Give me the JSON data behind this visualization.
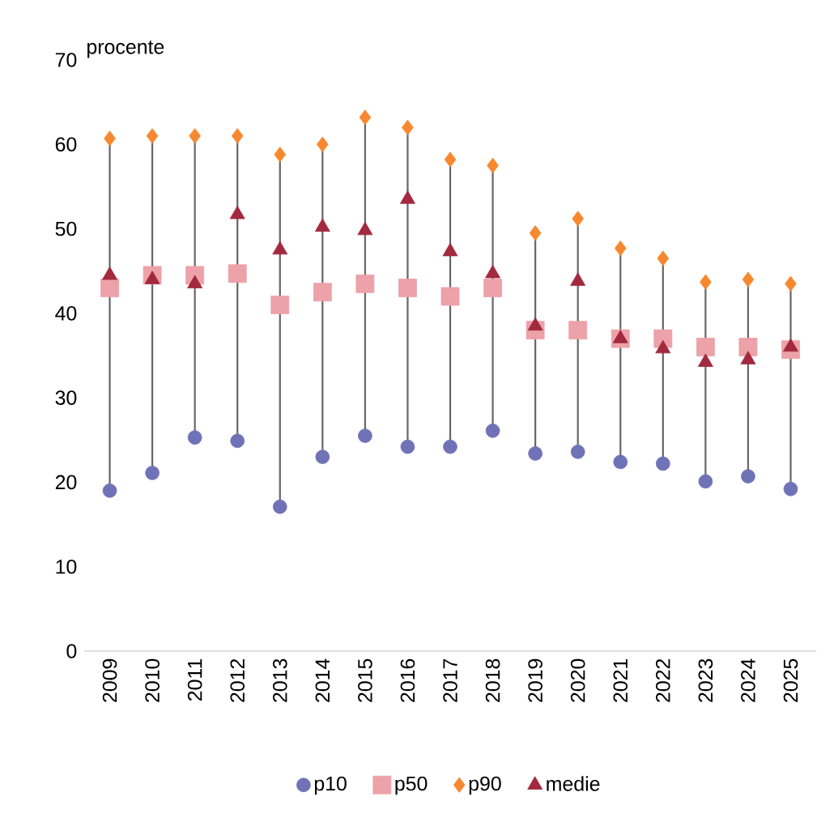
{
  "chart_data": {
    "type": "scatter",
    "ylabel": "procente",
    "categories": [
      "2009",
      "2010",
      "2011",
      "2012",
      "2013",
      "2014",
      "2015",
      "2016",
      "2017",
      "2018",
      "2019",
      "2020",
      "2021",
      "2022",
      "2023",
      "2024",
      "2025"
    ],
    "series": [
      {
        "name": "p10",
        "color": "#6f72b6",
        "marker": "circle",
        "values": [
          19.0,
          21.1,
          25.3,
          24.9,
          17.1,
          23.0,
          25.5,
          24.2,
          24.2,
          26.1,
          23.4,
          23.6,
          22.4,
          22.2,
          20.1,
          20.7,
          19.2
        ]
      },
      {
        "name": "p50",
        "color": "#eca2a8",
        "marker": "square",
        "values": [
          43.0,
          44.5,
          44.5,
          44.7,
          41.0,
          42.5,
          43.5,
          43.0,
          42.0,
          43.0,
          38.0,
          38.0,
          37.0,
          37.0,
          36.0,
          36.0,
          35.7
        ]
      },
      {
        "name": "p90",
        "color": "#f7882f",
        "marker": "diamond",
        "values": [
          60.7,
          61.0,
          61.0,
          61.0,
          58.8,
          60.0,
          63.2,
          62.0,
          58.2,
          57.5,
          49.5,
          51.2,
          47.7,
          46.5,
          43.7,
          44.0,
          43.5
        ]
      },
      {
        "name": "medie",
        "color": "#a3293f",
        "marker": "triangle",
        "values": [
          44.5,
          44.0,
          43.5,
          51.7,
          47.5,
          50.2,
          49.8,
          53.5,
          47.3,
          44.7,
          38.5,
          43.8,
          37.0,
          35.8,
          34.2,
          34.5,
          36.0
        ]
      }
    ],
    "ylim": [
      0,
      70
    ],
    "yticks": [
      0,
      10,
      20,
      30,
      40,
      50,
      60,
      70
    ],
    "grid": false,
    "legend": "bottom"
  }
}
